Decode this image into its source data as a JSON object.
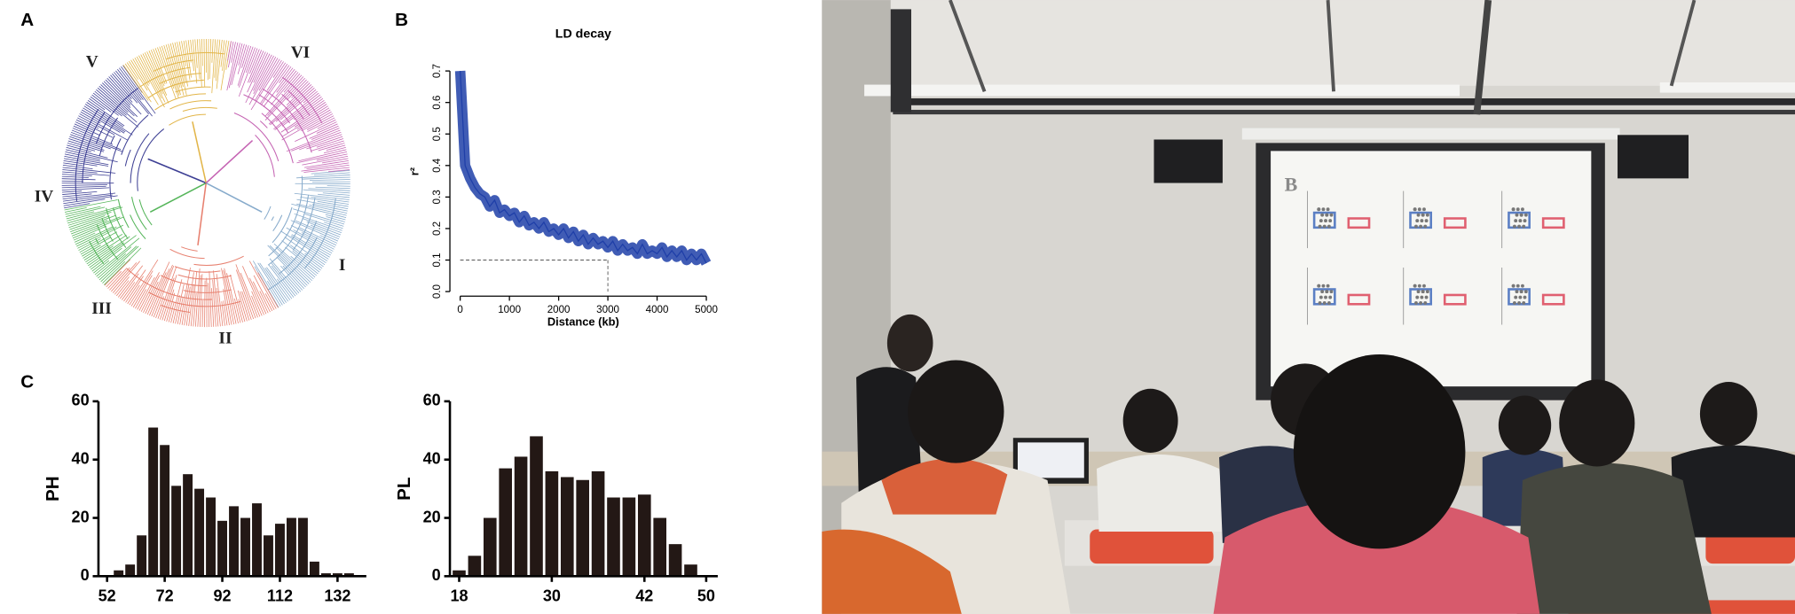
{
  "panel_labels": [
    "A",
    "B",
    "C"
  ],
  "tree": {
    "clade_labels": [
      "I",
      "II",
      "III",
      "IV",
      "V",
      "VI"
    ]
  },
  "photo": {
    "slide_label": "B"
  },
  "chart_data": [
    {
      "type": "line",
      "title": "LD decay",
      "x_label": "Distance (kb)",
      "y_label": "r²",
      "x": [
        0,
        100,
        200,
        300,
        400,
        500,
        600,
        700,
        800,
        900,
        1000,
        1100,
        1200,
        1300,
        1400,
        1500,
        1600,
        1700,
        1800,
        1900,
        2000,
        2100,
        2200,
        2300,
        2400,
        2500,
        2600,
        2700,
        2800,
        2900,
        3000,
        3100,
        3200,
        3300,
        3400,
        3500,
        3600,
        3700,
        3800,
        3900,
        4000,
        4100,
        4200,
        4300,
        4400,
        4500,
        4600,
        4700,
        4800,
        4900,
        5000
      ],
      "values": [
        0.7,
        0.4,
        0.36,
        0.33,
        0.31,
        0.3,
        0.27,
        0.29,
        0.25,
        0.26,
        0.24,
        0.25,
        0.22,
        0.24,
        0.21,
        0.22,
        0.2,
        0.22,
        0.19,
        0.2,
        0.18,
        0.2,
        0.17,
        0.19,
        0.16,
        0.18,
        0.15,
        0.17,
        0.15,
        0.16,
        0.14,
        0.16,
        0.13,
        0.15,
        0.13,
        0.14,
        0.12,
        0.15,
        0.12,
        0.13,
        0.12,
        0.14,
        0.11,
        0.13,
        0.11,
        0.13,
        0.1,
        0.12,
        0.1,
        0.12,
        0.09
      ],
      "color": "#1f3fa8",
      "xlim": [
        0,
        5000
      ],
      "ylim": [
        0,
        0.72
      ],
      "xticks": [
        0,
        1000,
        2000,
        3000,
        4000,
        5000
      ],
      "yticks": [
        {
          "value": 0,
          "label": "0.0"
        },
        0.1,
        0.2,
        0.3,
        0.4,
        0.5,
        0.6,
        0.7
      ],
      "reference_lines": {
        "y": 0.1,
        "x": 3000
      }
    },
    {
      "type": "histogram",
      "y_label": "PH",
      "bins": [
        54,
        58,
        62,
        66,
        70,
        74,
        78,
        82,
        86,
        90,
        94,
        98,
        102,
        106,
        110,
        114,
        118,
        122,
        126,
        130,
        134,
        138
      ],
      "values": [
        2,
        4,
        14,
        51,
        45,
        31,
        35,
        30,
        27,
        19,
        24,
        20,
        25,
        14,
        18,
        20,
        20,
        5,
        1,
        1,
        1
      ],
      "color": "#231815",
      "xlim": [
        49,
        142
      ],
      "ylim": [
        0,
        60
      ],
      "xticks": [
        52,
        72,
        92,
        112,
        132
      ],
      "yticks": [
        0,
        20,
        40,
        60
      ]
    },
    {
      "type": "histogram",
      "y_label": "PL",
      "bins": [
        17,
        19,
        21,
        23,
        25,
        27,
        29,
        31,
        33,
        35,
        37,
        39,
        41,
        43,
        45,
        47,
        49
      ],
      "values": [
        2,
        7,
        20,
        37,
        41,
        48,
        36,
        34,
        33,
        36,
        27,
        27,
        28,
        20,
        11,
        4
      ],
      "color": "#231815",
      "xlim": [
        16.8,
        51.5
      ],
      "ylim": [
        0,
        60
      ],
      "xticks": [
        18,
        30,
        42,
        50
      ],
      "yticks": [
        0,
        20,
        40,
        60
      ]
    }
  ]
}
